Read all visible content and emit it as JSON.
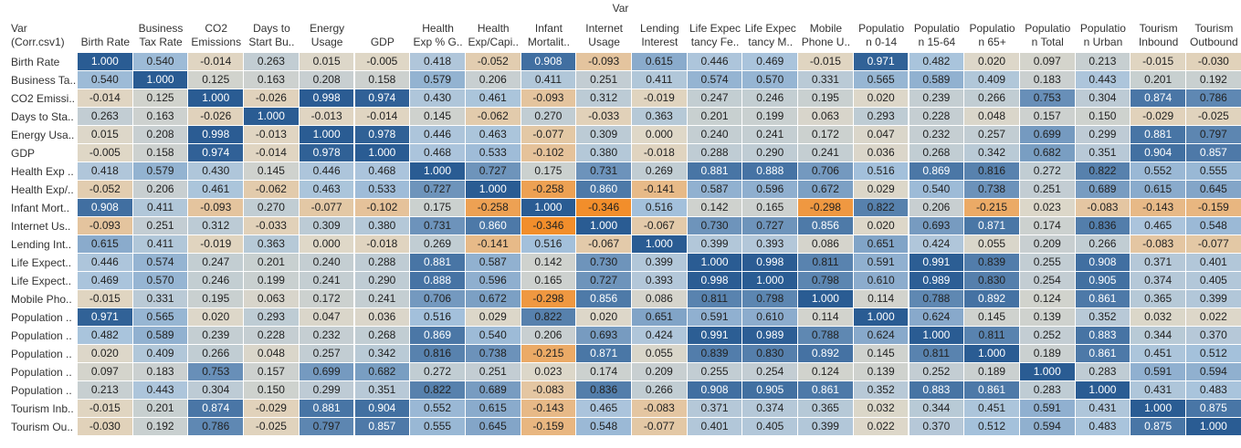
{
  "chart_data": {
    "type": "heatmap",
    "title": "Var",
    "row_axis_label": "Var\n(Corr.csv1)",
    "column_labels": [
      "Birth Rate",
      "Business\nTax Rate",
      "CO2\nEmissions",
      "Days to\nStart Bu..",
      "Energy\nUsage",
      "GDP",
      "Health\nExp % G..",
      "Health\nExp/Capi..",
      "Infant\nMortalit..",
      "Internet\nUsage",
      "Lending\nInterest",
      "Life Expec\ntancy Fe..",
      "Life Expec\ntancy M..",
      "Mobile\nPhone U..",
      "Populatio\nn 0-14",
      "Populatio\nn 15-64",
      "Populatio\nn 65+",
      "Populatio\nn Total",
      "Populatio\nn Urban",
      "Tourism\nInbound",
      "Tourism\nOutbound"
    ],
    "row_labels": [
      "Birth Rate",
      "Business Ta..",
      "CO2 Emissi..",
      "Days to Sta..",
      "Energy Usa..",
      "GDP",
      "Health Exp ..",
      "Health Exp/..",
      "Infant Mort..",
      "Internet Us..",
      "Lending Int..",
      "Life Expect..",
      "Life Expect..",
      "Mobile Pho..",
      "Population ..",
      "Population ..",
      "Population ..",
      "Population ..",
      "Population ..",
      "Tourism Inb..",
      "Tourism Ou.."
    ],
    "values": [
      [
        1.0,
        0.54,
        -0.014,
        0.263,
        0.015,
        -0.005,
        0.418,
        -0.052,
        0.908,
        -0.093,
        0.615,
        0.446,
        0.469,
        -0.015,
        0.971,
        0.482,
        0.02,
        0.097,
        0.213,
        -0.015,
        -0.03
      ],
      [
        0.54,
        1.0,
        0.125,
        0.163,
        0.208,
        0.158,
        0.579,
        0.206,
        0.411,
        0.251,
        0.411,
        0.574,
        0.57,
        0.331,
        0.565,
        0.589,
        0.409,
        0.183,
        0.443,
        0.201,
        0.192
      ],
      [
        -0.014,
        0.125,
        1.0,
        -0.026,
        0.998,
        0.974,
        0.43,
        0.461,
        -0.093,
        0.312,
        -0.019,
        0.247,
        0.246,
        0.195,
        0.02,
        0.239,
        0.266,
        0.753,
        0.304,
        0.874,
        0.786
      ],
      [
        0.263,
        0.163,
        -0.026,
        1.0,
        -0.013,
        -0.014,
        0.145,
        -0.062,
        0.27,
        -0.033,
        0.363,
        0.201,
        0.199,
        0.063,
        0.293,
        0.228,
        0.048,
        0.157,
        0.15,
        -0.029,
        -0.025
      ],
      [
        0.015,
        0.208,
        0.998,
        -0.013,
        1.0,
        0.978,
        0.446,
        0.463,
        -0.077,
        0.309,
        0.0,
        0.24,
        0.241,
        0.172,
        0.047,
        0.232,
        0.257,
        0.699,
        0.299,
        0.881,
        0.797
      ],
      [
        -0.005,
        0.158,
        0.974,
        -0.014,
        0.978,
        1.0,
        0.468,
        0.533,
        -0.102,
        0.38,
        -0.018,
        0.288,
        0.29,
        0.241,
        0.036,
        0.268,
        0.342,
        0.682,
        0.351,
        0.904,
        0.857
      ],
      [
        0.418,
        0.579,
        0.43,
        0.145,
        0.446,
        0.468,
        1.0,
        0.727,
        0.175,
        0.731,
        0.269,
        0.881,
        0.888,
        0.706,
        0.516,
        0.869,
        0.816,
        0.272,
        0.822,
        0.552,
        0.555
      ],
      [
        -0.052,
        0.206,
        0.461,
        -0.062,
        0.463,
        0.533,
        0.727,
        1.0,
        -0.258,
        0.86,
        -0.141,
        0.587,
        0.596,
        0.672,
        0.029,
        0.54,
        0.738,
        0.251,
        0.689,
        0.615,
        0.645
      ],
      [
        0.908,
        0.411,
        -0.093,
        0.27,
        -0.077,
        -0.102,
        0.175,
        -0.258,
        1.0,
        -0.346,
        0.516,
        0.142,
        0.165,
        -0.298,
        0.822,
        0.206,
        -0.215,
        0.023,
        -0.083,
        -0.143,
        -0.159
      ],
      [
        -0.093,
        0.251,
        0.312,
        -0.033,
        0.309,
        0.38,
        0.731,
        0.86,
        -0.346,
        1.0,
        -0.067,
        0.73,
        0.727,
        0.856,
        0.02,
        0.693,
        0.871,
        0.174,
        0.836,
        0.465,
        0.548
      ],
      [
        0.615,
        0.411,
        -0.019,
        0.363,
        0.0,
        -0.018,
        0.269,
        -0.141,
        0.516,
        -0.067,
        1.0,
        0.399,
        0.393,
        0.086,
        0.651,
        0.424,
        0.055,
        0.209,
        0.266,
        -0.083,
        -0.077
      ],
      [
        0.446,
        0.574,
        0.247,
        0.201,
        0.24,
        0.288,
        0.881,
        0.587,
        0.142,
        0.73,
        0.399,
        1.0,
        0.998,
        0.811,
        0.591,
        0.991,
        0.839,
        0.255,
        0.908,
        0.371,
        0.401
      ],
      [
        0.469,
        0.57,
        0.246,
        0.199,
        0.241,
        0.29,
        0.888,
        0.596,
        0.165,
        0.727,
        0.393,
        0.998,
        1.0,
        0.798,
        0.61,
        0.989,
        0.83,
        0.254,
        0.905,
        0.374,
        0.405
      ],
      [
        -0.015,
        0.331,
        0.195,
        0.063,
        0.172,
        0.241,
        0.706,
        0.672,
        -0.298,
        0.856,
        0.086,
        0.811,
        0.798,
        1.0,
        0.114,
        0.788,
        0.892,
        0.124,
        0.861,
        0.365,
        0.399
      ],
      [
        0.971,
        0.565,
        0.02,
        0.293,
        0.047,
        0.036,
        0.516,
        0.029,
        0.822,
        0.02,
        0.651,
        0.591,
        0.61,
        0.114,
        1.0,
        0.624,
        0.145,
        0.139,
        0.352,
        0.032,
        0.022
      ],
      [
        0.482,
        0.589,
        0.239,
        0.228,
        0.232,
        0.268,
        0.869,
        0.54,
        0.206,
        0.693,
        0.424,
        0.991,
        0.989,
        0.788,
        0.624,
        1.0,
        0.811,
        0.252,
        0.883,
        0.344,
        0.37
      ],
      [
        0.02,
        0.409,
        0.266,
        0.048,
        0.257,
        0.342,
        0.816,
        0.738,
        -0.215,
        0.871,
        0.055,
        0.839,
        0.83,
        0.892,
        0.145,
        0.811,
        1.0,
        0.189,
        0.861,
        0.451,
        0.512
      ],
      [
        0.097,
        0.183,
        0.753,
        0.157,
        0.699,
        0.682,
        0.272,
        0.251,
        0.023,
        0.174,
        0.209,
        0.255,
        0.254,
        0.124,
        0.139,
        0.252,
        0.189,
        1.0,
        0.283,
        0.591,
        0.594
      ],
      [
        0.213,
        0.443,
        0.304,
        0.15,
        0.299,
        0.351,
        0.822,
        0.689,
        -0.083,
        0.836,
        0.266,
        0.908,
        0.905,
        0.861,
        0.352,
        0.883,
        0.861,
        0.283,
        1.0,
        0.431,
        0.483
      ],
      [
        -0.015,
        0.201,
        0.874,
        -0.029,
        0.881,
        0.904,
        0.552,
        0.615,
        -0.143,
        0.465,
        -0.083,
        0.371,
        0.374,
        0.365,
        0.032,
        0.344,
        0.451,
        0.591,
        0.431,
        1.0,
        0.875
      ],
      [
        -0.03,
        0.192,
        0.786,
        -0.025,
        0.797,
        0.857,
        0.555,
        0.645,
        -0.159,
        0.548,
        -0.077,
        0.401,
        0.405,
        0.399,
        0.022,
        0.37,
        0.512,
        0.594,
        0.483,
        0.875,
        1.0
      ]
    ],
    "value_range": [
      -0.346,
      1.0
    ],
    "colors": {
      "negative_end": "#f28e2b",
      "neutral": "#dfd8c8",
      "positive_mid": "#a7c3dd",
      "positive_end": "#2a5c93",
      "text_dark": "#222222",
      "text_light": "#ffffff"
    }
  }
}
